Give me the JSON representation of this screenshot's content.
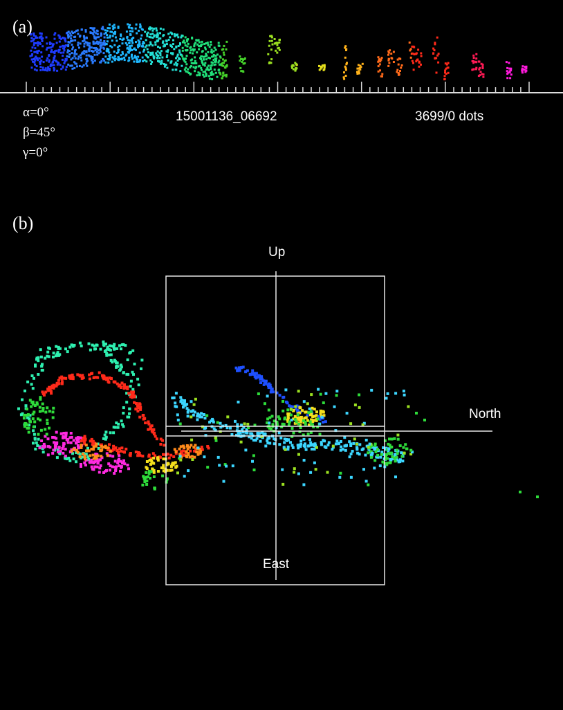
{
  "panel_a": {
    "letter": "(a)",
    "angles": {
      "alpha": "α=0°",
      "beta": "β=45°",
      "gamma": "γ=0°"
    },
    "record_id": "15001136_06692",
    "dot_count": "3699/0 dots",
    "colors": [
      "#1e3cff",
      "#2a7bff",
      "#1fb7ff",
      "#23e0d6",
      "#20e07a",
      "#45d12a",
      "#9be021",
      "#e6e01c",
      "#ffb21a",
      "#ff6a1a",
      "#ff2a1a",
      "#ff1a55",
      "#ff1adc"
    ]
  },
  "panel_b": {
    "letter": "(b)",
    "axes": {
      "up": "Up",
      "north": "North",
      "east": "East"
    },
    "colors": {
      "red": "#ff2a1a",
      "teal": "#2ef0b0",
      "cyan": "#3cd6ff",
      "green": "#2edb3a",
      "blue": "#1e50ff",
      "yellow": "#f5e01c",
      "orange": "#ff8a1a",
      "magenta": "#ff2ae0",
      "lime": "#9be021"
    }
  }
}
